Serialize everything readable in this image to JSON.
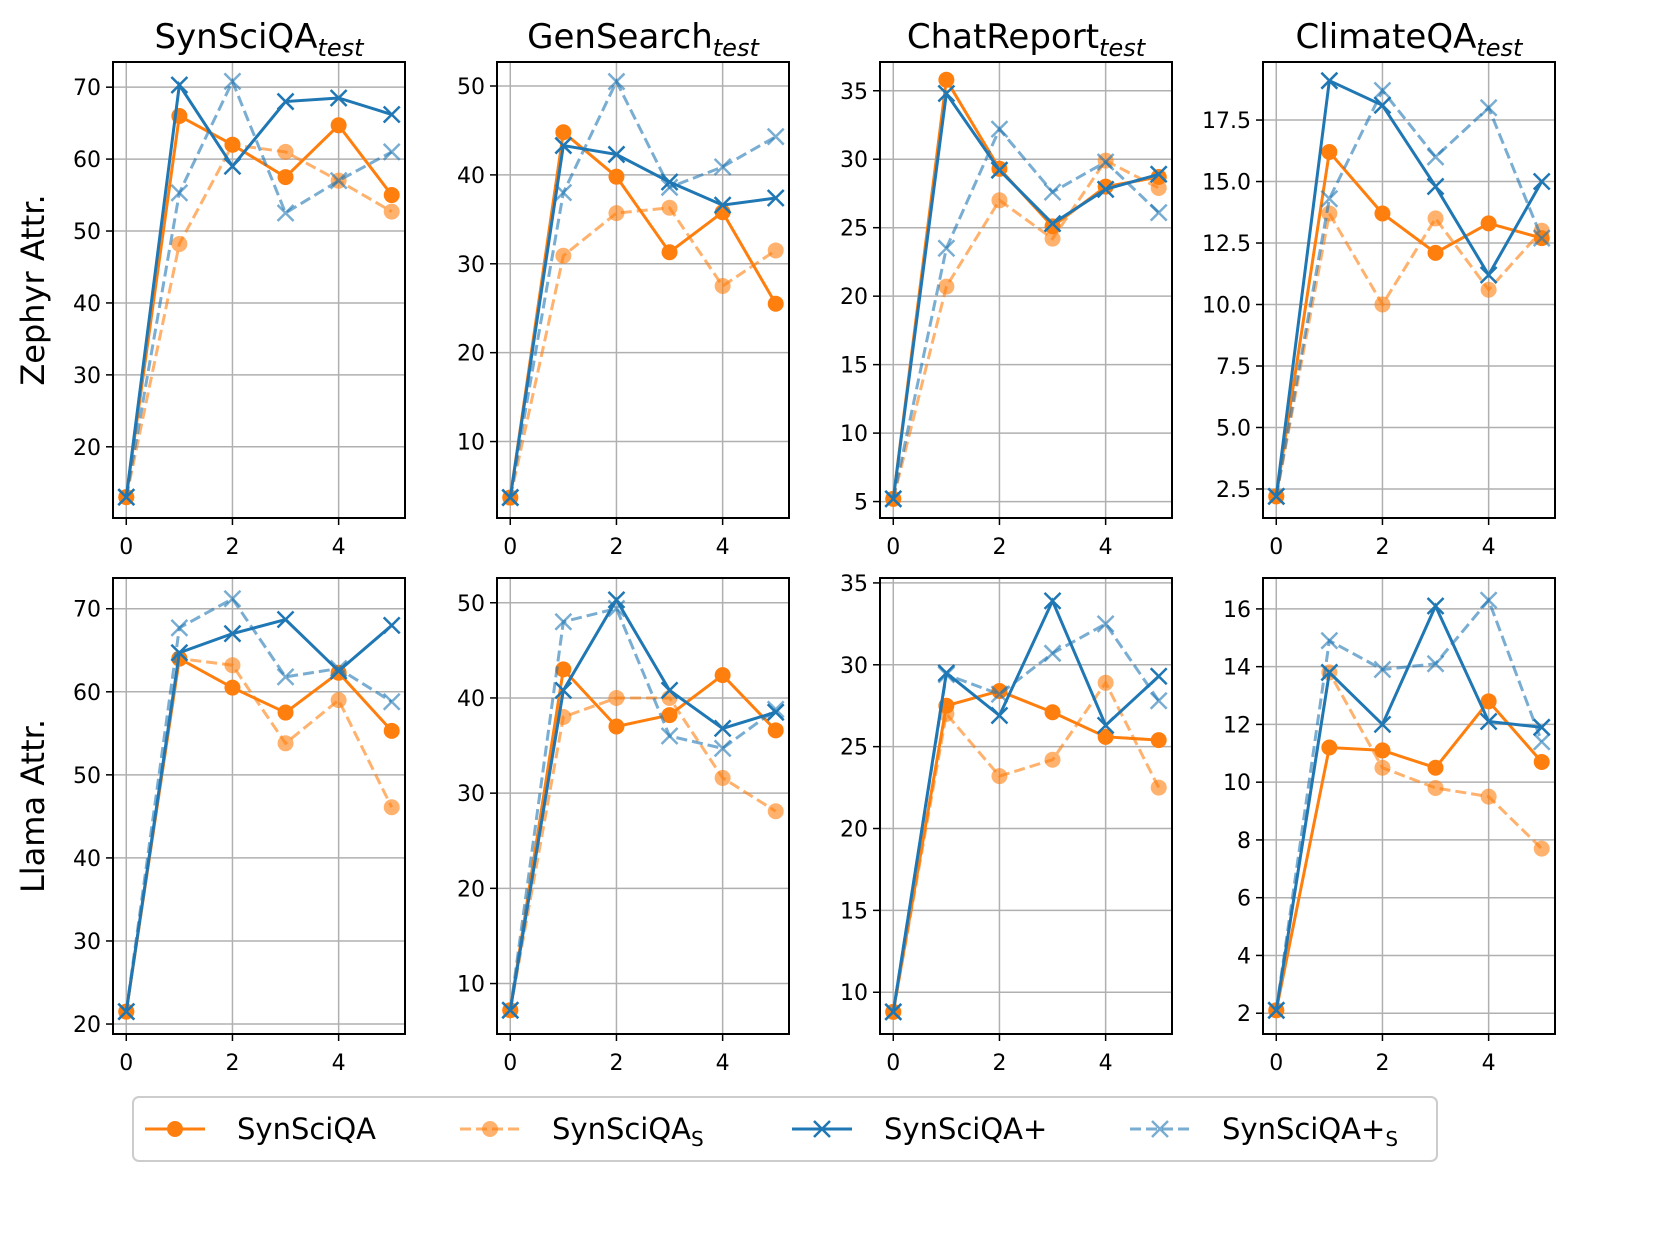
{
  "legend": [
    {
      "name": "SynSciQA",
      "color": "#ff7f0e",
      "linestyle": "solid",
      "marker": "circle",
      "alpha": 1
    },
    {
      "name": "SynSciQA",
      "subscript": "S",
      "color": "#ff7f0e",
      "linestyle": "dashed",
      "marker": "circle",
      "alpha": 0.6
    },
    {
      "name": "SynSciQA+",
      "color": "#1f77b4",
      "linestyle": "solid",
      "marker": "x",
      "alpha": 1
    },
    {
      "name": "SynSciQA+",
      "subscript": "S",
      "color": "#1f77b4",
      "linestyle": "dashed",
      "marker": "x",
      "alpha": 0.6
    }
  ],
  "chart_data": [
    {
      "type": "line",
      "title": "SynSciQA",
      "title_subscript": "test",
      "ylabel": "Zephyr Attr.",
      "grid": true,
      "x": [
        0,
        1,
        2,
        3,
        4,
        5
      ],
      "xlim": [
        -0.25,
        5.25
      ],
      "xticks": [
        0,
        2,
        4
      ],
      "ylim": [
        10.1,
        73.5
      ],
      "yticks": [
        20,
        30,
        40,
        50,
        60,
        70
      ],
      "series": [
        {
          "values": [
            13,
            66,
            62,
            57.5,
            64.7,
            55
          ]
        },
        {
          "values": [
            13,
            48.2,
            62,
            61,
            57,
            52.7
          ]
        },
        {
          "values": [
            13,
            70.3,
            59,
            68,
            68.5,
            66.2
          ]
        },
        {
          "values": [
            13,
            55.3,
            70.8,
            52.5,
            57,
            61
          ]
        }
      ]
    },
    {
      "type": "line",
      "title": "GenSearch",
      "title_subscript": "test",
      "grid": true,
      "x": [
        0,
        1,
        2,
        3,
        4,
        5
      ],
      "xlim": [
        -0.25,
        5.25
      ],
      "xticks": [
        0,
        2,
        4
      ],
      "ylim": [
        1.4,
        52.7
      ],
      "yticks": [
        10,
        20,
        30,
        40,
        50
      ],
      "series": [
        {
          "values": [
            3.7,
            44.8,
            39.8,
            31.3,
            35.8,
            25.5
          ]
        },
        {
          "values": [
            3.7,
            30.9,
            35.7,
            36.3,
            27.5,
            31.5
          ]
        },
        {
          "values": [
            3.7,
            43.3,
            42.3,
            39.2,
            36.6,
            37.4
          ]
        },
        {
          "values": [
            3.7,
            38,
            50.5,
            38.6,
            40.9,
            44.3
          ]
        }
      ]
    },
    {
      "type": "line",
      "title": "ChatReport",
      "title_subscript": "test",
      "grid": true,
      "x": [
        0,
        1,
        2,
        3,
        4,
        5
      ],
      "xlim": [
        -0.25,
        5.25
      ],
      "xticks": [
        0,
        2,
        4
      ],
      "ylim": [
        3.8,
        37.1
      ],
      "yticks": [
        5,
        10,
        15,
        20,
        25,
        30,
        35
      ],
      "series": [
        {
          "values": [
            5.2,
            35.8,
            29.3,
            25.1,
            28,
            28.7
          ]
        },
        {
          "values": [
            5.2,
            20.7,
            27,
            24.2,
            29.9,
            27.9
          ]
        },
        {
          "values": [
            5.2,
            34.8,
            29.2,
            25.3,
            27.8,
            28.9
          ]
        },
        {
          "values": [
            5.2,
            23.5,
            32.2,
            27.6,
            29.8,
            26.1
          ]
        }
      ]
    },
    {
      "type": "line",
      "title": "ClimateQA",
      "title_subscript": "test",
      "grid": true,
      "x": [
        0,
        1,
        2,
        3,
        4,
        5
      ],
      "xlim": [
        -0.25,
        5.25
      ],
      "xticks": [
        0,
        2,
        4
      ],
      "ylim": [
        1.32,
        19.86
      ],
      "yticks": [
        2.5,
        {
          "value": 5,
          "label": "5.0"
        },
        7.5,
        {
          "value": 10,
          "label": "10.0"
        },
        12.5,
        {
          "value": 15,
          "label": "15.0"
        },
        17.5
      ],
      "series": [
        {
          "values": [
            2.2,
            16.2,
            13.7,
            12.1,
            13.3,
            12.7
          ]
        },
        {
          "values": [
            2.2,
            13.7,
            10,
            13.5,
            10.6,
            13
          ]
        },
        {
          "values": [
            2.2,
            19.1,
            18.1,
            14.8,
            11.2,
            15
          ]
        },
        {
          "values": [
            2.2,
            14.3,
            18.7,
            16,
            18,
            12.7
          ]
        }
      ]
    },
    {
      "type": "line",
      "ylabel": "Llama Attr.",
      "grid": true,
      "x": [
        0,
        1,
        2,
        3,
        4,
        5
      ],
      "xlim": [
        -0.25,
        5.25
      ],
      "xticks": [
        0,
        2,
        4
      ],
      "ylim": [
        18.8,
        73.7
      ],
      "yticks": [
        20,
        30,
        40,
        50,
        60,
        70
      ],
      "series": [
        {
          "values": [
            21.5,
            64,
            60.5,
            57.5,
            62.3,
            55.3
          ]
        },
        {
          "values": [
            21.5,
            64,
            63.2,
            53.8,
            59,
            46.1
          ]
        },
        {
          "values": [
            21.5,
            64.7,
            67,
            68.7,
            62.5,
            68
          ]
        },
        {
          "values": [
            21.5,
            67.7,
            71.2,
            61.8,
            62.8,
            58.8
          ]
        }
      ]
    },
    {
      "type": "line",
      "grid": true,
      "x": [
        0,
        1,
        2,
        3,
        4,
        5
      ],
      "xlim": [
        -0.25,
        5.25
      ],
      "xticks": [
        0,
        2,
        4
      ],
      "ylim": [
        4.7,
        52.6
      ],
      "yticks": [
        10,
        20,
        30,
        40,
        50
      ],
      "series": [
        {
          "values": [
            7.2,
            43,
            37,
            38.2,
            42.4,
            36.6
          ]
        },
        {
          "values": [
            7.2,
            38,
            40,
            40,
            31.6,
            28.1
          ]
        },
        {
          "values": [
            7.2,
            40.8,
            50.3,
            40.8,
            36.8,
            38.5
          ]
        },
        {
          "values": [
            7.2,
            48,
            49.4,
            36,
            34.7,
            38.8
          ]
        }
      ]
    },
    {
      "type": "line",
      "grid": true,
      "x": [
        0,
        1,
        2,
        3,
        4,
        5
      ],
      "xlim": [
        -0.25,
        5.25
      ],
      "xticks": [
        0,
        2,
        4
      ],
      "ylim": [
        7.45,
        35.3
      ],
      "yticks": [
        10,
        15,
        20,
        25,
        30,
        35
      ],
      "series": [
        {
          "values": [
            8.8,
            27.5,
            28.4,
            27.1,
            25.6,
            25.4
          ]
        },
        {
          "values": [
            8.8,
            27,
            23.2,
            24.2,
            28.9,
            22.5
          ]
        },
        {
          "values": [
            8.8,
            29.5,
            26.9,
            33.9,
            26.3,
            29.3
          ]
        },
        {
          "values": [
            8.8,
            29.4,
            28.2,
            30.7,
            32.5,
            27.8
          ]
        }
      ]
    },
    {
      "type": "line",
      "grid": true,
      "x": [
        0,
        1,
        2,
        3,
        4,
        5
      ],
      "xlim": [
        -0.25,
        5.25
      ],
      "xticks": [
        0,
        2,
        4
      ],
      "ylim": [
        1.28,
        17.07
      ],
      "yticks": [
        2,
        4,
        6,
        8,
        10,
        12,
        14,
        16
      ],
      "series": [
        {
          "values": [
            2.1,
            11.2,
            11.1,
            10.5,
            12.8,
            10.7
          ]
        },
        {
          "values": [
            2.1,
            13.8,
            10.5,
            9.8,
            9.5,
            7.7
          ]
        },
        {
          "values": [
            2.1,
            13.8,
            12,
            16.1,
            12.1,
            11.9
          ]
        },
        {
          "values": [
            2.1,
            14.9,
            13.9,
            14.1,
            16.3,
            11.4
          ]
        }
      ]
    }
  ]
}
